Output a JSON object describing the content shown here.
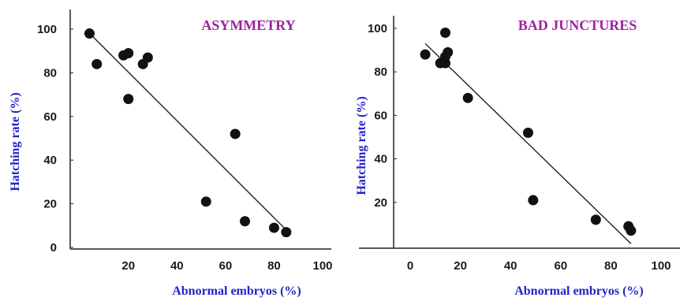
{
  "chart_data": [
    {
      "type": "scatter",
      "title": "ASYMMETRY",
      "title_color": "#a020a0",
      "xlabel": "Abnormal embryos (%)",
      "ylabel": "Hatching rate (%)",
      "label_color": "#2222cc",
      "xlim": [
        -2,
        100
      ],
      "ylim": [
        0,
        100
      ],
      "xticks": [
        20,
        40,
        60,
        80,
        100
      ],
      "yticks": [
        0,
        20,
        40,
        60,
        80,
        100
      ],
      "points": [
        {
          "x": 4,
          "y": 98
        },
        {
          "x": 7,
          "y": 84
        },
        {
          "x": 18,
          "y": 88
        },
        {
          "x": 20,
          "y": 89
        },
        {
          "x": 20,
          "y": 68
        },
        {
          "x": 26,
          "y": 84
        },
        {
          "x": 28,
          "y": 87
        },
        {
          "x": 52,
          "y": 21
        },
        {
          "x": 64,
          "y": 52
        },
        {
          "x": 68,
          "y": 12
        },
        {
          "x": 80,
          "y": 9
        },
        {
          "x": 85,
          "y": 7
        }
      ],
      "fit_line": [
        {
          "x": 5,
          "y": 97
        },
        {
          "x": 85,
          "y": 8
        }
      ]
    },
    {
      "type": "scatter",
      "title": "BAD JUNCTURES",
      "title_color": "#a020a0",
      "xlabel": "Abnormal embryos (%)",
      "ylabel": "Hatching rate (%)",
      "label_color": "#2222cc",
      "xlim": [
        0,
        100
      ],
      "ylim": [
        0,
        100
      ],
      "xticks": [
        0,
        20,
        40,
        60,
        80,
        100
      ],
      "yticks": [
        20,
        40,
        60,
        80,
        100
      ],
      "points": [
        {
          "x": 6,
          "y": 88
        },
        {
          "x": 12,
          "y": 84
        },
        {
          "x": 14,
          "y": 84
        },
        {
          "x": 14,
          "y": 87
        },
        {
          "x": 15,
          "y": 89
        },
        {
          "x": 14,
          "y": 98
        },
        {
          "x": 23,
          "y": 68
        },
        {
          "x": 47,
          "y": 52
        },
        {
          "x": 49,
          "y": 21
        },
        {
          "x": 74,
          "y": 12
        },
        {
          "x": 87,
          "y": 9
        },
        {
          "x": 88,
          "y": 7
        }
      ],
      "fit_line": [
        {
          "x": 6,
          "y": 93
        },
        {
          "x": 88,
          "y": 1
        }
      ]
    }
  ]
}
